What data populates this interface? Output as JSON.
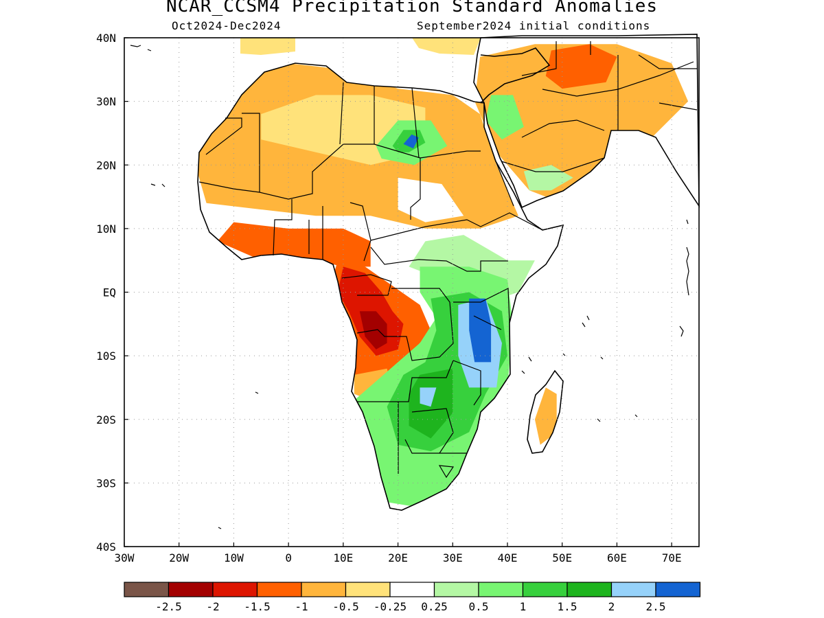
{
  "title": "NCAR_CCSM4 Precipitation Standard Anomalies",
  "subtitle_left": "Oct2024-Dec2024",
  "subtitle_right": "September2024 initial conditions",
  "map": {
    "lon_range": [
      -30,
      75
    ],
    "lat_range": [
      -40,
      40
    ],
    "x_ticks": [
      {
        "value": -30,
        "label": "30W"
      },
      {
        "value": -20,
        "label": "20W"
      },
      {
        "value": -10,
        "label": "10W"
      },
      {
        "value": 0,
        "label": "0"
      },
      {
        "value": 10,
        "label": "10E"
      },
      {
        "value": 20,
        "label": "20E"
      },
      {
        "value": 30,
        "label": "30E"
      },
      {
        "value": 40,
        "label": "40E"
      },
      {
        "value": 50,
        "label": "50E"
      },
      {
        "value": 60,
        "label": "60E"
      },
      {
        "value": 70,
        "label": "70E"
      }
    ],
    "y_ticks": [
      {
        "value": 40,
        "label": "40N"
      },
      {
        "value": 30,
        "label": "30N"
      },
      {
        "value": 20,
        "label": "20N"
      },
      {
        "value": 10,
        "label": "10N"
      },
      {
        "value": 0,
        "label": "EQ"
      },
      {
        "value": -10,
        "label": "10S"
      },
      {
        "value": -20,
        "label": "20S"
      },
      {
        "value": -30,
        "label": "30S"
      },
      {
        "value": -40,
        "label": "40S"
      }
    ],
    "grid": "dotted"
  },
  "colorbar": {
    "colors": [
      "#7a5548",
      "#a30000",
      "#dd1500",
      "#ff6000",
      "#ffb53c",
      "#ffe27a",
      "#ffffff",
      "#b4f7a4",
      "#78f572",
      "#37d03d",
      "#1eb41e",
      "#96d2fa",
      "#1464d2"
    ],
    "labels": [
      "-2.5",
      "-2",
      "-1.5",
      "-1",
      "-0.5",
      "-0.25",
      "0.25",
      "0.5",
      "1",
      "1.5",
      "2",
      "2.5"
    ]
  },
  "anomaly_regions": [
    {
      "name": "north-africa-dry",
      "color": "#ffb53c",
      "poly": [
        [
          -17,
          29
        ],
        [
          -10,
          33
        ],
        [
          0,
          36
        ],
        [
          10,
          35
        ],
        [
          20,
          32
        ],
        [
          30,
          31
        ],
        [
          35,
          28
        ],
        [
          38,
          20
        ],
        [
          42,
          12
        ],
        [
          35,
          10
        ],
        [
          25,
          10
        ],
        [
          15,
          12
        ],
        [
          5,
          12
        ],
        [
          -5,
          13
        ],
        [
          -15,
          14
        ],
        [
          -17,
          20
        ]
      ]
    },
    {
      "name": "sahara-light-dry",
      "color": "#ffe27a",
      "poly": [
        [
          -5,
          28
        ],
        [
          5,
          31
        ],
        [
          15,
          31
        ],
        [
          25,
          29
        ],
        [
          25,
          22
        ],
        [
          15,
          20
        ],
        [
          5,
          22
        ],
        [
          -5,
          24
        ]
      ]
    },
    {
      "name": "sahara-neutral",
      "color": "#ffffff",
      "poly": [
        [
          20,
          18
        ],
        [
          28,
          17
        ],
        [
          32,
          12
        ],
        [
          25,
          11
        ],
        [
          20,
          13
        ]
      ]
    },
    {
      "name": "sahara-wet",
      "color": "#78f572",
      "poly": [
        [
          16,
          23
        ],
        [
          20,
          27
        ],
        [
          26,
          27
        ],
        [
          29,
          23
        ],
        [
          23,
          20
        ],
        [
          17,
          21
        ]
      ]
    },
    {
      "name": "sahara-wet-core",
      "color": "#37d03d",
      "poly": [
        [
          19,
          23
        ],
        [
          21,
          25.5
        ],
        [
          24,
          25.5
        ],
        [
          25,
          23.5
        ],
        [
          22,
          22
        ],
        [
          20,
          22
        ]
      ]
    },
    {
      "name": "sahara-wet-peak",
      "color": "#1464d2",
      "poly": [
        [
          21,
          23.3
        ],
        [
          22.5,
          24.8
        ],
        [
          23.8,
          24.3
        ],
        [
          22.8,
          22.6
        ]
      ]
    },
    {
      "name": "gulf-of-guinea-dry",
      "color": "#ff6000",
      "poly": [
        [
          -13,
          8
        ],
        [
          -5,
          5
        ],
        [
          5,
          5
        ],
        [
          10,
          4
        ],
        [
          15,
          4
        ],
        [
          15,
          8
        ],
        [
          10,
          10
        ],
        [
          0,
          10
        ],
        [
          -10,
          11
        ]
      ]
    },
    {
      "name": "arabia-dry",
      "color": "#ffb53c",
      "poly": [
        [
          35,
          37
        ],
        [
          45,
          39
        ],
        [
          60,
          39
        ],
        [
          70,
          36
        ],
        [
          73,
          30
        ],
        [
          66,
          24
        ],
        [
          58,
          18
        ],
        [
          50,
          14
        ],
        [
          44,
          16
        ],
        [
          38,
          22
        ],
        [
          34,
          30
        ]
      ]
    },
    {
      "name": "iran-dry",
      "color": "#ff6000",
      "poly": [
        [
          48,
          38
        ],
        [
          55,
          39
        ],
        [
          60,
          37
        ],
        [
          58,
          33
        ],
        [
          50,
          32
        ],
        [
          47,
          34
        ]
      ]
    },
    {
      "name": "arabia-wet",
      "color": "#78f572",
      "poly": [
        [
          37,
          31
        ],
        [
          41,
          31
        ],
        [
          43,
          26
        ],
        [
          39,
          24
        ],
        [
          36,
          27
        ]
      ]
    },
    {
      "name": "yemen-wet",
      "color": "#b4f7a4",
      "poly": [
        [
          43,
          19
        ],
        [
          48,
          20
        ],
        [
          52,
          18
        ],
        [
          48,
          16
        ],
        [
          44,
          16
        ]
      ]
    },
    {
      "name": "central-africa-dry",
      "color": "#ff6000",
      "poly": [
        [
          9,
          5
        ],
        [
          14,
          4
        ],
        [
          19,
          1
        ],
        [
          24,
          -2
        ],
        [
          26,
          -6
        ],
        [
          22,
          -10
        ],
        [
          19,
          -12
        ],
        [
          16,
          -14
        ],
        [
          12,
          -13
        ],
        [
          10,
          -8
        ],
        [
          9,
          -2
        ],
        [
          8,
          2
        ]
      ]
    },
    {
      "name": "congo-very-dry",
      "color": "#dd1500",
      "poly": [
        [
          10,
          4
        ],
        [
          14,
          3
        ],
        [
          17,
          0
        ],
        [
          19,
          -3
        ],
        [
          21,
          -5
        ],
        [
          20,
          -9
        ],
        [
          16,
          -10
        ],
        [
          13,
          -7
        ],
        [
          11,
          -3
        ],
        [
          9,
          0
        ]
      ]
    },
    {
      "name": "congo-extreme-dry",
      "color": "#a30000",
      "poly": [
        [
          13,
          -3
        ],
        [
          16,
          -3
        ],
        [
          18,
          -5
        ],
        [
          18,
          -8
        ],
        [
          16,
          -9
        ],
        [
          14,
          -7
        ]
      ]
    },
    {
      "name": "angola-mild-dry",
      "color": "#ffb53c",
      "poly": [
        [
          12,
          -13
        ],
        [
          18,
          -12
        ],
        [
          19,
          -16
        ],
        [
          15,
          -17
        ],
        [
          12,
          -16
        ]
      ]
    },
    {
      "name": "east-africa-neutral",
      "color": "#ffffff",
      "poly": [
        [
          25,
          10
        ],
        [
          35,
          10
        ],
        [
          42,
          7
        ],
        [
          46,
          2
        ],
        [
          40,
          -2
        ],
        [
          30,
          2
        ],
        [
          22,
          5
        ],
        [
          20,
          8
        ]
      ]
    },
    {
      "name": "east-africa-light-wet",
      "color": "#b4f7a4",
      "poly": [
        [
          25,
          8
        ],
        [
          32,
          9
        ],
        [
          40,
          5
        ],
        [
          45,
          5
        ],
        [
          42,
          0
        ],
        [
          35,
          -2
        ],
        [
          28,
          2
        ],
        [
          22,
          4
        ]
      ]
    },
    {
      "name": "southern-africa-wet",
      "color": "#78f572",
      "poly": [
        [
          24,
          4
        ],
        [
          33,
          4
        ],
        [
          40,
          2
        ],
        [
          41,
          -5
        ],
        [
          40,
          -15
        ],
        [
          35,
          -20
        ],
        [
          32,
          -30
        ],
        [
          25,
          -34
        ],
        [
          18,
          -33
        ],
        [
          15,
          -27
        ],
        [
          14,
          -20
        ],
        [
          12,
          -17
        ],
        [
          16,
          -14
        ],
        [
          20,
          -11
        ],
        [
          24,
          -8
        ],
        [
          27,
          -4
        ],
        [
          24,
          0
        ]
      ]
    },
    {
      "name": "southern-africa-wet-core",
      "color": "#37d03d",
      "poly": [
        [
          26,
          -1
        ],
        [
          33,
          0
        ],
        [
          39,
          -3
        ],
        [
          40,
          -10
        ],
        [
          36,
          -16
        ],
        [
          33,
          -22
        ],
        [
          26,
          -25
        ],
        [
          20,
          -24
        ],
        [
          18,
          -18
        ],
        [
          21,
          -13
        ],
        [
          25,
          -11
        ],
        [
          27,
          -6
        ]
      ]
    },
    {
      "name": "zambia-strong-wet",
      "color": "#1eb41e",
      "poly": [
        [
          24,
          -13
        ],
        [
          30,
          -12
        ],
        [
          30,
          -19
        ],
        [
          26,
          -23
        ],
        [
          22,
          -21
        ],
        [
          22,
          -16
        ]
      ]
    },
    {
      "name": "tanzania-very-wet",
      "color": "#96d2fa",
      "poly": [
        [
          31,
          -2
        ],
        [
          36,
          -1
        ],
        [
          39,
          -8
        ],
        [
          38,
          -15
        ],
        [
          33,
          -15
        ],
        [
          31,
          -10
        ]
      ]
    },
    {
      "name": "tanzania-extreme-wet",
      "color": "#1464d2",
      "poly": [
        [
          33,
          -1
        ],
        [
          36,
          -1
        ],
        [
          37,
          -5
        ],
        [
          37,
          -11
        ],
        [
          34,
          -11
        ],
        [
          33,
          -6
        ]
      ]
    },
    {
      "name": "zambia-very-wet",
      "color": "#96d2fa",
      "poly": [
        [
          24,
          -15
        ],
        [
          27,
          -15
        ],
        [
          26,
          -18
        ],
        [
          24,
          -17.5
        ]
      ]
    },
    {
      "name": "madagascar-dry",
      "color": "#ffb53c",
      "poly": [
        [
          47,
          -15
        ],
        [
          49,
          -16
        ],
        [
          49,
          -22
        ],
        [
          46,
          -24
        ],
        [
          45,
          -20
        ]
      ]
    }
  ]
}
